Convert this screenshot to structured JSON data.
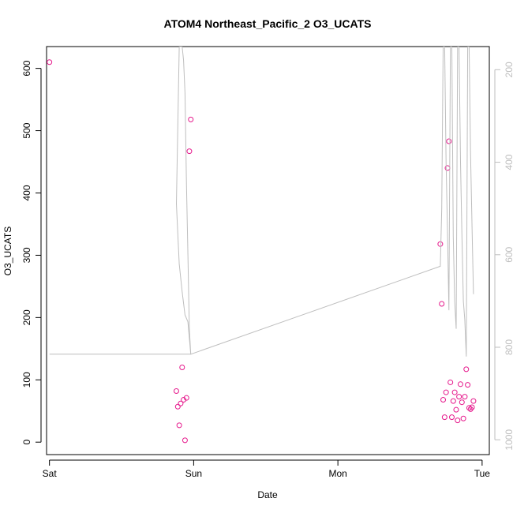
{
  "chart_data": {
    "type": "scatter",
    "title": "ATOM4 Northeast_Pacific_2 O3_UCATS",
    "xlabel": "Date",
    "ylabel": "O3_UCATS",
    "x_ticks": [
      "Sat",
      "Sun",
      "Mon",
      "Tue"
    ],
    "xlim": [
      -0.02,
      3.05
    ],
    "ylim": [
      -20,
      635
    ],
    "y_ticks": [
      0,
      100,
      200,
      300,
      400,
      500,
      600
    ],
    "y2_ticks": [
      200,
      400,
      600,
      800,
      1000
    ],
    "y2lim": [
      1032,
      150
    ],
    "grid": false,
    "legend": "none",
    "colors": {
      "points": "#e6198c",
      "pressure_line": "#bebebe"
    },
    "series": [
      {
        "axis": "left",
        "style": "points",
        "x": [
          0.0,
          0.88,
          0.89,
          0.9,
          0.91,
          0.92,
          0.93,
          0.94,
          0.95,
          0.97,
          0.98,
          2.71,
          2.72,
          2.73,
          2.74,
          2.75,
          2.76,
          2.77,
          2.78,
          2.79,
          2.8,
          2.81,
          2.82,
          2.83,
          2.84,
          2.85,
          2.86,
          2.87,
          2.88,
          2.89,
          2.9,
          2.91,
          2.92,
          2.93,
          2.94
        ],
        "y": [
          610,
          82,
          57,
          27,
          62,
          120,
          68,
          3,
          71,
          467,
          518,
          318,
          222,
          68,
          40,
          80,
          440,
          483,
          96,
          40,
          66,
          80,
          52,
          35,
          73,
          93,
          64,
          38,
          73,
          117,
          92,
          55,
          53,
          56,
          66
        ]
      },
      {
        "axis": "right",
        "style": "line",
        "x": [
          0.0,
          0.98,
          0.97,
          0.96,
          0.94,
          0.92,
          0.9,
          0.88,
          0.9,
          0.92,
          0.93,
          0.94,
          0.95,
          0.96,
          0.97,
          0.98,
          2.71,
          2.72,
          2.73,
          2.74,
          2.75,
          2.76,
          2.77,
          2.78,
          2.79,
          2.8,
          2.81,
          2.82,
          2.83,
          2.84,
          2.85,
          2.86,
          2.87,
          2.88,
          2.89,
          2.9,
          2.91,
          2.92,
          2.93,
          2.94
        ],
        "y": [
          815,
          815,
          780,
          745,
          730,
          680,
          620,
          490,
          150,
          150,
          180,
          250,
          450,
          600,
          760,
          815,
          625,
          500,
          150,
          150,
          400,
          550,
          720,
          150,
          150,
          560,
          700,
          760,
          150,
          150,
          400,
          560,
          700,
          740,
          820,
          150,
          150,
          380,
          540,
          685
        ]
      }
    ]
  }
}
